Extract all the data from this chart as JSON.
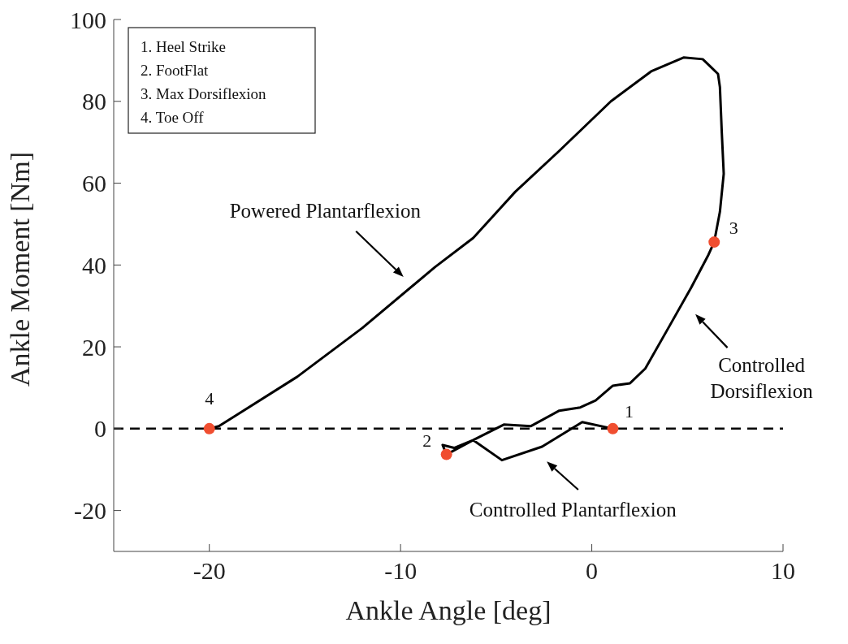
{
  "chart_data": {
    "type": "line",
    "xlabel": "Ankle Angle [deg]",
    "ylabel": "Ankle Moment [Nm]",
    "xlim": [
      -25,
      10
    ],
    "xticks": [
      -20,
      -10,
      0,
      10
    ],
    "ylim": [
      -30,
      100
    ],
    "yticks": [
      -20,
      0,
      20,
      40,
      60,
      80,
      100
    ],
    "line_style": "solid",
    "marker": "none",
    "series": [
      {
        "color": "#000000",
        "x": [
          1.1,
          -0.5,
          -2.6,
          -4.7,
          -6.2,
          -7.6,
          -7.8,
          -7.2,
          -6.2,
          -4.6,
          -3.2,
          -1.7,
          -0.6,
          0.2,
          1.1,
          2.0,
          2.8,
          4.1,
          5.2,
          6.1,
          6.4,
          6.7,
          6.9,
          6.8,
          6.7,
          6.6,
          6.2,
          5.8,
          4.8,
          3.1,
          1.0,
          -1.7,
          -4.0,
          -6.2,
          -8.2,
          -12,
          -15.4,
          -19.5,
          -20
        ],
        "values": [
          0,
          1.6,
          -4.4,
          -7.7,
          -2.8,
          -6.3,
          -4.0,
          -4.7,
          -2.8,
          1.0,
          0.6,
          4.4,
          5.2,
          6.9,
          10.5,
          11.1,
          14.7,
          25.4,
          34.5,
          42.5,
          45.6,
          53,
          62.3,
          72.2,
          83.5,
          86.7,
          88.5,
          90.3,
          90.7,
          87.3,
          80,
          67.9,
          57.9,
          46.6,
          39.5,
          24.6,
          12.7,
          0.6,
          0
        ]
      },
      {
        "type": "scatter",
        "color": "#f04e30",
        "marker": "circle",
        "x": [
          1.1,
          -7.6,
          6.4,
          -20
        ],
        "values": [
          0,
          -6.3,
          45.6,
          0
        ]
      }
    ],
    "ref_lines": [
      {
        "axis": "y",
        "value": 0,
        "color": "#000000",
        "line_style": "dashed"
      }
    ],
    "annotations": [
      "1. Heel Strike",
      "2. FootFlat",
      "3. Max Dorsiflexion",
      "4. Toe Off",
      {
        "text": "1",
        "x": 1.1,
        "y": 0
      },
      {
        "text": "2",
        "x": -7.6,
        "y": -6.3
      },
      {
        "text": "3",
        "x": 6.4,
        "y": 45.6
      },
      {
        "text": "4",
        "x": -20,
        "y": 0
      },
      "Powered Plantarflexion",
      "Controlled Dorsiflexion",
      "Controlled Plantarflexion"
    ]
  }
}
